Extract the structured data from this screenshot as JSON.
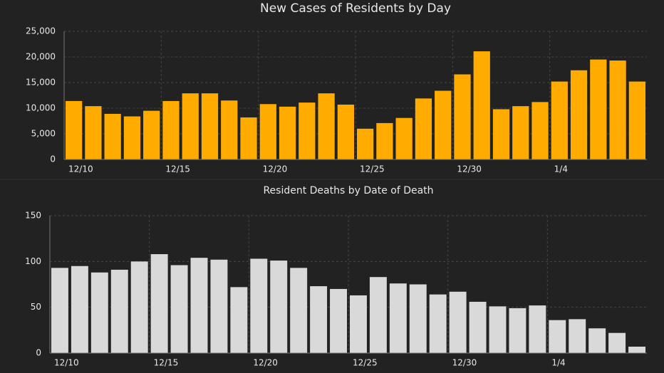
{
  "chart_data": [
    {
      "type": "bar",
      "title": "New Cases of Residents by Day",
      "categories": [
        "12/10",
        null,
        null,
        null,
        null,
        "12/15",
        null,
        null,
        null,
        null,
        "12/20",
        null,
        null,
        null,
        null,
        "12/25",
        null,
        null,
        null,
        null,
        "12/30",
        null,
        null,
        null,
        null,
        "1/4",
        null,
        null,
        null,
        null
      ],
      "values": [
        11400,
        10400,
        8900,
        8400,
        9500,
        11400,
        12900,
        12900,
        11500,
        8200,
        10800,
        10300,
        11100,
        12900,
        10700,
        6000,
        7100,
        8100,
        11900,
        13400,
        16600,
        21100,
        9800,
        10400,
        11200,
        15200,
        17400,
        19500,
        19300,
        15200
      ],
      "color": "#ffab00",
      "ylim": [
        0,
        25000
      ],
      "yticks": [
        0,
        {
          "value": 5000,
          "label": "5,000"
        },
        {
          "value": 10000,
          "label": "10,000"
        },
        {
          "value": 15000,
          "label": "15,000"
        },
        {
          "value": 20000,
          "label": "20,000"
        },
        {
          "value": 25000,
          "label": "25,000"
        }
      ],
      "grid": true
    },
    {
      "type": "bar",
      "title": "Resident Deaths by Date of Death",
      "categories": [
        "12/10",
        null,
        null,
        null,
        null,
        "12/15",
        null,
        null,
        null,
        null,
        "12/20",
        null,
        null,
        null,
        null,
        "12/25",
        null,
        null,
        null,
        null,
        "12/30",
        null,
        null,
        null,
        null,
        "1/4",
        null,
        null,
        null,
        null
      ],
      "values": [
        93,
        95,
        88,
        91,
        100,
        108,
        96,
        104,
        102,
        72,
        103,
        101,
        93,
        73,
        70,
        63,
        83,
        76,
        75,
        64,
        67,
        56,
        51,
        49,
        52,
        36,
        37,
        27,
        22,
        7
      ],
      "color": "#d9d9d9",
      "ylim": [
        0,
        150
      ],
      "yticks": [
        0,
        50,
        100,
        150
      ],
      "grid": true
    }
  ]
}
